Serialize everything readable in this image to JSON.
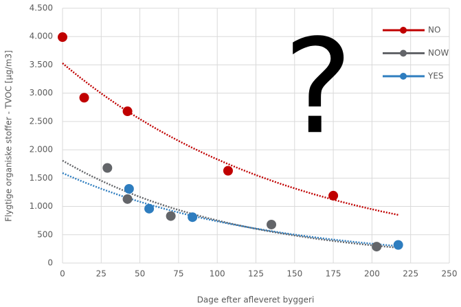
{
  "chart_data": {
    "type": "scatter",
    "annotation": "?",
    "xlabel": "Dage efter afleveret byggeri",
    "ylabel": "Flygtige organiske stoffer - TVOC [µg/m3]",
    "xlim": [
      0,
      250
    ],
    "xticks": [
      0,
      25,
      50,
      75,
      100,
      125,
      150,
      175,
      200,
      225,
      250
    ],
    "ylim": [
      0,
      4500
    ],
    "yticks": [
      0,
      500,
      {
        "value": 1000,
        "label": "1.000"
      },
      {
        "value": 1500,
        "label": "1.500"
      },
      {
        "value": 2000,
        "label": "2.000"
      },
      {
        "value": 2500,
        "label": "2.500"
      },
      {
        "value": 3000,
        "label": "3.000"
      },
      {
        "value": 3500,
        "label": "3.500"
      },
      {
        "value": 4000,
        "label": "4.000"
      },
      {
        "value": 4500,
        "label": "4.500"
      }
    ],
    "grid": true,
    "legend": "upper right",
    "series": [
      {
        "name": "NO",
        "color": "#c00000",
        "x": [
          0,
          14,
          42,
          107,
          175
        ],
        "values": [
          3990,
          2920,
          2680,
          1630,
          1190
        ],
        "trendline": {
          "x": [
            0,
            217
          ],
          "values": [
            3530,
            850
          ]
        }
      },
      {
        "name": "NOW",
        "color": "#636569",
        "x": [
          29,
          42,
          70,
          135,
          203
        ],
        "values": [
          1680,
          1130,
          830,
          680,
          290
        ],
        "trendline": {
          "x": [
            0,
            217
          ],
          "values": [
            1810,
            270
          ]
        }
      },
      {
        "name": "YES",
        "color": "#2e7dbf",
        "x": [
          43,
          56,
          84,
          217
        ],
        "values": [
          1310,
          960,
          810,
          320
        ],
        "trendline": {
          "x": [
            0,
            217
          ],
          "values": [
            1590,
            300
          ]
        }
      }
    ]
  }
}
